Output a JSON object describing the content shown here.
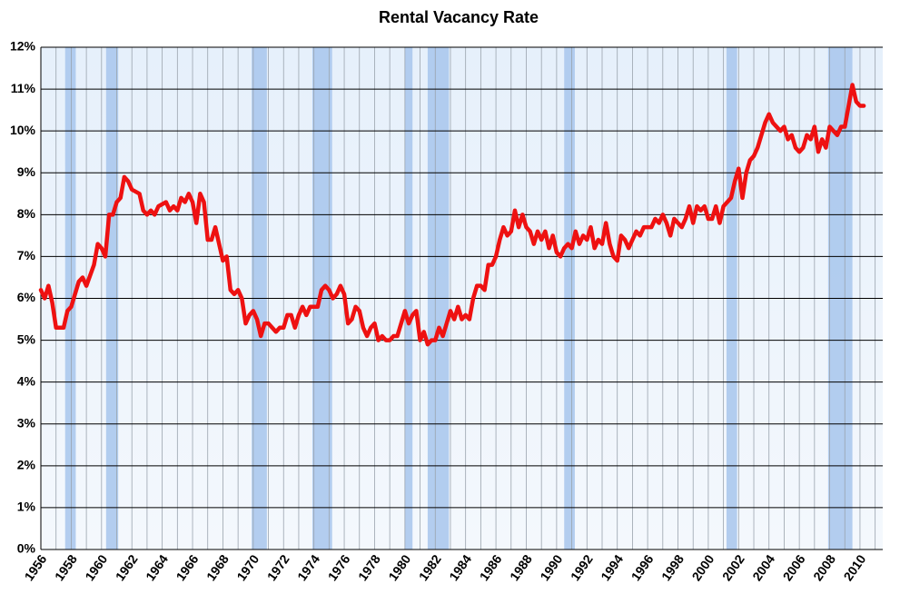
{
  "chart_data": {
    "type": "line",
    "title": "Rental Vacancy Rate",
    "x": [
      1956,
      1956.25,
      1956.5,
      1956.75,
      1957,
      1957.5,
      1957.75,
      1958,
      1958.5,
      1958.75,
      1959,
      1959.5,
      1959.75,
      1960,
      1960.25,
      1960.5,
      1960.75,
      1961,
      1961.25,
      1961.5,
      1961.75,
      1962,
      1962.5,
      1962.75,
      1963,
      1963.25,
      1963.5,
      1963.75,
      1964.25,
      1964.5,
      1964.75,
      1965,
      1965.25,
      1965.5,
      1965.75,
      1966,
      1966.25,
      1966.5,
      1966.75,
      1967,
      1967.25,
      1967.5,
      1967.75,
      1968,
      1968.25,
      1968.5,
      1968.75,
      1969,
      1969.25,
      1969.5,
      1969.75,
      1970,
      1970.25,
      1970.5,
      1970.75,
      1971,
      1971.25,
      1971.5,
      1971.75,
      1972,
      1972.25,
      1972.5,
      1972.75,
      1973,
      1973.25,
      1973.5,
      1973.75,
      1974,
      1974.25,
      1974.5,
      1974.75,
      1975,
      1975.25,
      1975.5,
      1975.75,
      1976,
      1976.25,
      1976.5,
      1976.75,
      1977,
      1977.25,
      1977.5,
      1977.75,
      1978,
      1978.25,
      1978.5,
      1978.75,
      1979,
      1979.25,
      1979.5,
      1979.75,
      1980,
      1980.25,
      1980.5,
      1980.75,
      1981,
      1981.25,
      1981.5,
      1981.75,
      1982,
      1982.25,
      1982.5,
      1982.75,
      1983,
      1983.25,
      1983.5,
      1983.75,
      1984,
      1984.25,
      1984.5,
      1984.75,
      1985,
      1985.25,
      1985.5,
      1985.75,
      1986,
      1986.25,
      1986.5,
      1986.75,
      1987,
      1987.25,
      1987.5,
      1987.75,
      1988,
      1988.25,
      1988.5,
      1988.75,
      1989,
      1989.25,
      1989.5,
      1989.75,
      1990,
      1990.25,
      1990.5,
      1990.75,
      1991,
      1991.25,
      1991.5,
      1991.75,
      1992,
      1992.25,
      1992.5,
      1992.75,
      1993,
      1993.25,
      1993.5,
      1993.75,
      1994,
      1994.25,
      1994.5,
      1994.75,
      1995,
      1995.25,
      1995.5,
      1995.75,
      1996,
      1996.25,
      1996.5,
      1996.75,
      1997,
      1997.25,
      1997.5,
      1997.75,
      1998,
      1998.25,
      1998.5,
      1998.75,
      1999,
      1999.25,
      1999.5,
      1999.75,
      2000,
      2000.25,
      2000.5,
      2000.75,
      2001,
      2001.25,
      2001.5,
      2001.75,
      2002,
      2002.25,
      2002.5,
      2002.75,
      2003,
      2003.25,
      2003.5,
      2003.75,
      2004,
      2004.25,
      2004.5,
      2004.75,
      2005,
      2005.25,
      2005.5,
      2005.75,
      2006,
      2006.25,
      2006.5,
      2006.75,
      2007,
      2007.25,
      2007.5,
      2007.75,
      2008,
      2008.25,
      2008.5,
      2008.75,
      2009,
      2009.25,
      2009.5,
      2009.75,
      2010,
      2010.25
    ],
    "series": [
      {
        "name": "Rental Vacancy Rate",
        "color": "#ee1111",
        "values": [
          6.2,
          6.0,
          6.3,
          5.9,
          5.3,
          5.3,
          5.7,
          5.8,
          6.4,
          6.5,
          6.3,
          6.8,
          7.3,
          7.2,
          7.0,
          8.0,
          8.0,
          8.3,
          8.4,
          8.9,
          8.8,
          8.6,
          8.5,
          8.1,
          8.0,
          8.1,
          8.0,
          8.2,
          8.3,
          8.1,
          8.2,
          8.1,
          8.4,
          8.3,
          8.5,
          8.3,
          7.8,
          8.5,
          8.3,
          7.4,
          7.4,
          7.7,
          7.3,
          6.9,
          7.0,
          6.2,
          6.1,
          6.2,
          6.0,
          5.4,
          5.6,
          5.7,
          5.5,
          5.1,
          5.4,
          5.4,
          5.3,
          5.2,
          5.3,
          5.3,
          5.6,
          5.6,
          5.3,
          5.6,
          5.8,
          5.6,
          5.8,
          5.8,
          5.8,
          6.2,
          6.3,
          6.2,
          6.0,
          6.1,
          6.3,
          6.1,
          5.4,
          5.5,
          5.8,
          5.7,
          5.3,
          5.1,
          5.3,
          5.4,
          5.0,
          5.1,
          5.0,
          5.0,
          5.1,
          5.1,
          5.4,
          5.7,
          5.4,
          5.6,
          5.7,
          5.0,
          5.2,
          4.9,
          5.0,
          5.0,
          5.3,
          5.1,
          5.4,
          5.7,
          5.5,
          5.8,
          5.5,
          5.6,
          5.5,
          6.0,
          6.3,
          6.3,
          6.2,
          6.8,
          6.8,
          7.0,
          7.4,
          7.7,
          7.5,
          7.6,
          8.1,
          7.7,
          8.0,
          7.7,
          7.6,
          7.3,
          7.6,
          7.4,
          7.6,
          7.2,
          7.5,
          7.1,
          7.0,
          7.2,
          7.3,
          7.2,
          7.6,
          7.3,
          7.5,
          7.4,
          7.7,
          7.2,
          7.4,
          7.3,
          7.8,
          7.3,
          7.0,
          6.9,
          7.5,
          7.4,
          7.2,
          7.4,
          7.6,
          7.5,
          7.7,
          7.7,
          7.7,
          7.9,
          7.8,
          8.0,
          7.8,
          7.5,
          7.9,
          7.8,
          7.7,
          7.9,
          8.2,
          7.8,
          8.2,
          8.1,
          8.2,
          7.9,
          7.9,
          8.2,
          7.8,
          8.2,
          8.3,
          8.4,
          8.8,
          9.1,
          8.4,
          9.0,
          9.3,
          9.4,
          9.6,
          9.9,
          10.2,
          10.4,
          10.2,
          10.1,
          10.0,
          10.1,
          9.8,
          9.9,
          9.6,
          9.5,
          9.6,
          9.9,
          9.8,
          10.1,
          9.5,
          9.8,
          9.6,
          10.1,
          10.0,
          9.9,
          10.1,
          10.1,
          10.6,
          11.1,
          10.7,
          10.6,
          10.6
        ]
      }
    ],
    "recessions": [
      [
        1957.6,
        1958.3
      ],
      [
        1960.3,
        1961.1
      ],
      [
        1969.9,
        1970.9
      ],
      [
        1973.9,
        1975.2
      ],
      [
        1980.0,
        1980.5
      ],
      [
        1981.5,
        1982.9
      ],
      [
        1990.5,
        1991.2
      ],
      [
        2001.2,
        2001.9
      ],
      [
        2007.9,
        2009.5
      ]
    ],
    "recession_color": "#a7c6ec",
    "xlim": [
      1956,
      2011.5
    ],
    "xticks": [
      1956,
      1958,
      1960,
      1962,
      1964,
      1966,
      1968,
      1970,
      1972,
      1974,
      1976,
      1978,
      1980,
      1982,
      1984,
      1986,
      1988,
      1990,
      1992,
      1994,
      1996,
      1998,
      2000,
      2002,
      2004,
      2006,
      2008,
      2010
    ],
    "xminorticks": [
      1957,
      1959,
      1961,
      1963,
      1965,
      1967,
      1969,
      1971,
      1973,
      1975,
      1977,
      1979,
      1981,
      1983,
      1985,
      1987,
      1989,
      1991,
      1993,
      1995,
      1997,
      1999,
      2001,
      2003,
      2005,
      2007,
      2009,
      2011
    ],
    "ylim": [
      0,
      12
    ],
    "yticks": [
      {
        "value": 0,
        "label": "0%"
      },
      {
        "value": 1,
        "label": "1%"
      },
      {
        "value": 2,
        "label": "2%"
      },
      {
        "value": 3,
        "label": "3%"
      },
      {
        "value": 4,
        "label": "4%"
      },
      {
        "value": 5,
        "label": "5%"
      },
      {
        "value": 6,
        "label": "6%"
      },
      {
        "value": 7,
        "label": "7%"
      },
      {
        "value": 8,
        "label": "8%"
      },
      {
        "value": 9,
        "label": "9%"
      },
      {
        "value": 10,
        "label": "10%"
      },
      {
        "value": 11,
        "label": "11%"
      },
      {
        "value": 12,
        "label": "12%"
      }
    ],
    "grid": true
  }
}
